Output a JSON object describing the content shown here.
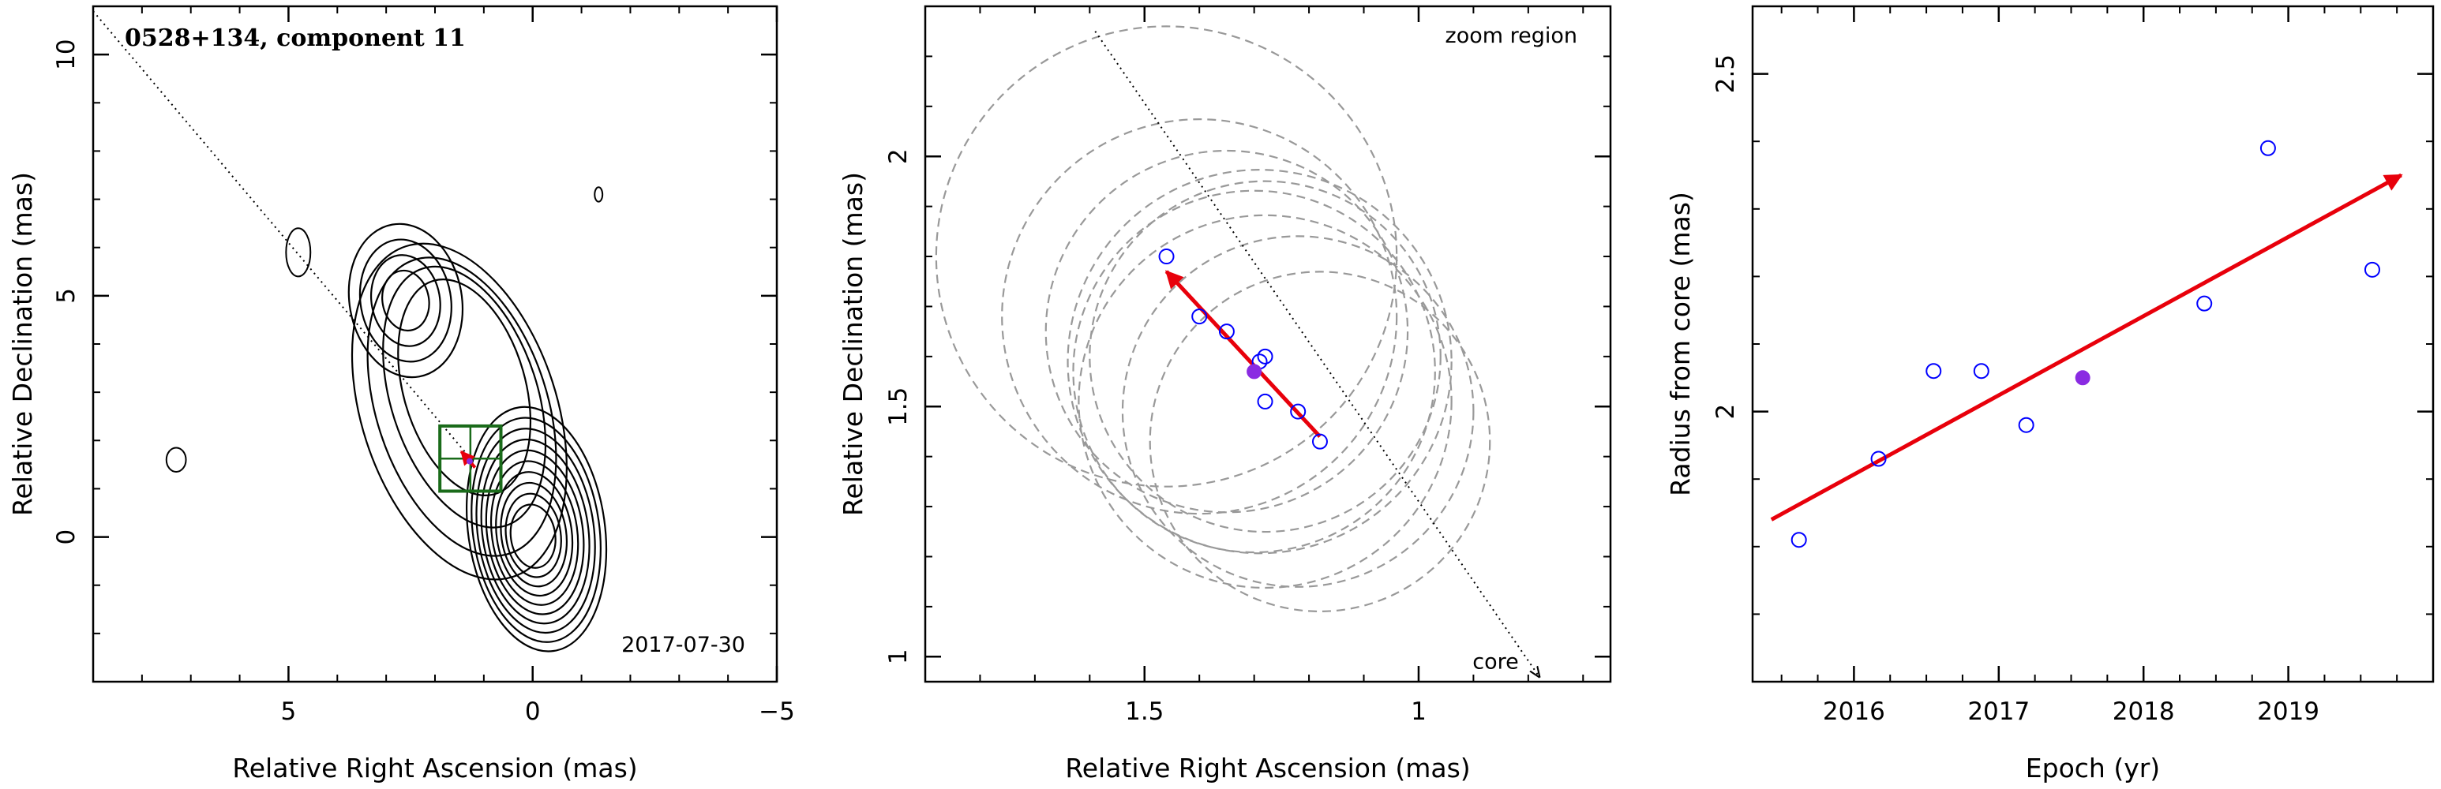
{
  "chart_data": [
    {
      "type": "contour",
      "title": "0528+134, component 11",
      "date_label": "2017-07-30",
      "xlabel": "Relative Right Ascension (mas)",
      "ylabel": "Relative Declination (mas)",
      "xlim": [
        9,
        -5
      ],
      "ylim": [
        -3,
        11
      ],
      "xticks": [
        5,
        0,
        -5
      ],
      "yticks": [
        0,
        5,
        10
      ],
      "xtick_labels": [
        "5",
        "0",
        "−5"
      ],
      "ytick_labels": [
        "0",
        "5",
        "10"
      ],
      "direction_line": {
        "from": [
          9,
          10.9
        ],
        "to": [
          1.25,
          1.6
        ]
      },
      "core_position": [
        0,
        0
      ],
      "contour_peaks": [
        {
          "x": 0,
          "y": 0,
          "levels": 10
        },
        {
          "x": 2.6,
          "y": 4.9,
          "levels": 4
        }
      ],
      "isolated_components": [
        {
          "x": 7.3,
          "y": 1.6
        },
        {
          "x": 4.8,
          "y": 5.9
        },
        {
          "x": -1.35,
          "y": 7.1
        }
      ],
      "zoom_box": {
        "x": [
          0.65,
          1.9
        ],
        "y": [
          0.95,
          2.3
        ]
      },
      "component_arrow": {
        "from": [
          1.18,
          1.44
        ],
        "to": [
          1.46,
          1.77
        ]
      },
      "highlight_point": [
        1.29,
        1.57
      ],
      "colors": {
        "contours": "#000000",
        "zoom_box": "#1a6b1a",
        "arrow": "#e8000b",
        "highlight": "#8a2be2"
      }
    },
    {
      "type": "scatter",
      "annotation": "zoom region",
      "core_label": "core",
      "xlabel": "Relative Right Ascension (mas)",
      "ylabel": "Relative Declination (mas)",
      "xlim": [
        1.9,
        0.65
      ],
      "ylim": [
        0.95,
        2.3
      ],
      "xticks": [
        1.5,
        1.0
      ],
      "yticks": [
        1.0,
        1.5,
        2.0
      ],
      "xtick_labels": [
        "1.5",
        "1"
      ],
      "ytick_labels": [
        "1",
        "1.5",
        "2"
      ],
      "points": [
        {
          "x": 1.46,
          "y": 1.8
        },
        {
          "x": 1.4,
          "y": 1.68
        },
        {
          "x": 1.35,
          "y": 1.65
        },
        {
          "x": 1.28,
          "y": 1.6
        },
        {
          "x": 1.29,
          "y": 1.59
        },
        {
          "x": 1.28,
          "y": 1.51
        },
        {
          "x": 1.22,
          "y": 1.49
        },
        {
          "x": 1.18,
          "y": 1.43
        }
      ],
      "highlight_point": {
        "x": 1.3,
        "y": 1.57
      },
      "component_arrow": {
        "from": [
          1.18,
          1.44
        ],
        "to": [
          1.46,
          1.77
        ]
      },
      "direction_line": {
        "from": [
          1.59,
          2.25
        ],
        "to": [
          0.78,
          0.96
        ]
      },
      "component_circles": [
        {
          "x": 1.46,
          "y": 1.8,
          "r": 0.42
        },
        {
          "x": 1.4,
          "y": 1.68,
          "r": 0.36
        },
        {
          "x": 1.35,
          "y": 1.65,
          "r": 0.33
        },
        {
          "x": 1.3,
          "y": 1.57,
          "r": 0.33
        },
        {
          "x": 1.28,
          "y": 1.6,
          "r": 0.32
        },
        {
          "x": 1.29,
          "y": 1.59,
          "r": 0.35
        },
        {
          "x": 1.28,
          "y": 1.51,
          "r": 0.34
        },
        {
          "x": 1.22,
          "y": 1.49,
          "r": 0.32
        },
        {
          "x": 1.18,
          "y": 1.43,
          "r": 0.31
        }
      ],
      "colors": {
        "points": "#0000ff",
        "highlight": "#8a2be2",
        "arrow": "#e8000b",
        "circles": "#999999"
      }
    },
    {
      "type": "scatter",
      "xlabel": "Epoch (yr)",
      "ylabel": "Radius from core (mas)",
      "xlim": [
        2015.3,
        2020.0
      ],
      "ylim": [
        1.6,
        2.6
      ],
      "xticks": [
        2016,
        2017,
        2018,
        2019
      ],
      "yticks": [
        2.0,
        2.5
      ],
      "xtick_labels": [
        "2016",
        "2017",
        "2018",
        "2019"
      ],
      "ytick_labels": [
        "2",
        "2.5"
      ],
      "points": [
        {
          "x": 2015.62,
          "y": 1.81
        },
        {
          "x": 2016.17,
          "y": 1.93
        },
        {
          "x": 2016.55,
          "y": 2.06
        },
        {
          "x": 2016.88,
          "y": 2.06
        },
        {
          "x": 2017.19,
          "y": 1.98
        },
        {
          "x": 2018.42,
          "y": 2.16
        },
        {
          "x": 2018.86,
          "y": 2.39
        },
        {
          "x": 2019.58,
          "y": 2.21
        }
      ],
      "highlight_point": {
        "x": 2017.58,
        "y": 2.05
      },
      "trend_arrow": {
        "from": [
          2015.43,
          1.84
        ],
        "to": [
          2019.78,
          2.35
        ]
      },
      "colors": {
        "points": "#0000ff",
        "highlight": "#8a2be2",
        "arrow": "#e8000b"
      }
    }
  ]
}
